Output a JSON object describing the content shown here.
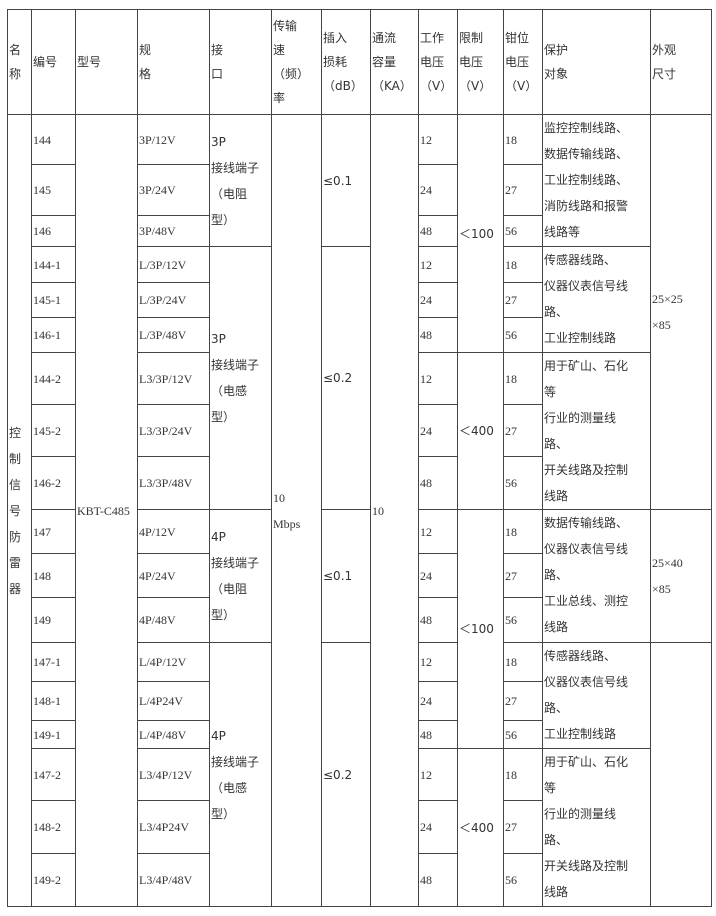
{
  "header": [
    "名\n称",
    "编号",
    "型号",
    "规\n格",
    "接\n口",
    "传输\n速\n（频）\n率",
    "插入\n损耗\n（dB）",
    "通流\n容量\n（KA）",
    "工作\n电压\n（V）",
    "限制\n电压\n（V）",
    "钳位\n电压\n（V）",
    "保护\n对象",
    "外观\n尺寸"
  ],
  "name": "控\n制\n信\n号\n防\n雷\n器",
  "model": "KBT-C485",
  "speed": "10\nMbps",
  "current": "10",
  "rows": [
    {
      "id": "144",
      "spec": "3P/12V",
      "work": "12",
      "clamp": "18"
    },
    {
      "id": "145",
      "spec": "3P/24V",
      "work": "24",
      "clamp": "27"
    },
    {
      "id": "146",
      "spec": "3P/48V",
      "work": "48",
      "clamp": "56"
    },
    {
      "id": "144-1",
      "spec": "L/3P/12V",
      "work": "12",
      "clamp": "18"
    },
    {
      "id": "145-1",
      "spec": "L/3P/24V",
      "work": "24",
      "clamp": "27"
    },
    {
      "id": "146-1",
      "spec": "L/3P/48V",
      "work": "48",
      "clamp": "56"
    },
    {
      "id": "144-2",
      "spec": "L3/3P/12V",
      "work": "12",
      "clamp": "18"
    },
    {
      "id": "145-2",
      "spec": "L3/3P/24V",
      "work": "24",
      "clamp": "27"
    },
    {
      "id": "146-2",
      "spec": "L3/3P/48V",
      "work": "48",
      "clamp": "56"
    },
    {
      "id": "147",
      "spec": "4P/12V",
      "work": "12",
      "clamp": "18"
    },
    {
      "id": "148",
      "spec": "4P/24V",
      "work": "24",
      "clamp": "27"
    },
    {
      "id": "149",
      "spec": "4P/48V",
      "work": "48",
      "clamp": "56"
    },
    {
      "id": "147-1",
      "spec": "L/4P/12V",
      "work": "12",
      "clamp": "18"
    },
    {
      "id": "148-1",
      "spec": "L/4P24V",
      "work": "24",
      "clamp": "27"
    },
    {
      "id": "149-1",
      "spec": "L/4P/48V",
      "work": "48",
      "clamp": "56"
    },
    {
      "id": "147-2",
      "spec": "L3/4P/12V",
      "work": "12",
      "clamp": "18"
    },
    {
      "id": "148-2",
      "spec": "L3/4P24V",
      "work": "24",
      "clamp": "27"
    },
    {
      "id": "149-2",
      "spec": "L3/4P/48V",
      "work": "48",
      "clamp": "56"
    }
  ],
  "interfaces": [
    "3P\n接线端子\n（电阻\n型）",
    "3P\n接线端子\n（电感\n型）",
    "4P\n接线端子\n（电阻\n型）",
    "4P\n接线端子\n（电感\n型）"
  ],
  "insertion_loss": [
    "≤0.1",
    "≤0.2",
    "≤0.1",
    "≤0.2"
  ],
  "limit_voltage": [
    "＜100",
    "＜400",
    "＜100",
    "＜400"
  ],
  "protected_objects": [
    "监控控制线路、\n数据传输线路、\n工业控制线路、\n消防线路和报警\n线路等",
    "传感器线路、\n仪器仪表信号线\n路、\n工业控制线路",
    "用于矿山、石化\n等\n行业的测量线\n路、\n开关线路及控制\n线路",
    "数据传输线路、\n仪器仪表信号线\n路、\n工业总线、测控\n线路",
    "传感器线路、\n仪器仪表信号线\n路、\n工业控制线路",
    "用于矿山、石化\n等\n行业的测量线\n路、\n开关线路及控制\n线路"
  ],
  "sizes": [
    "25×25\n×85",
    "25×40\n×85",
    ""
  ]
}
